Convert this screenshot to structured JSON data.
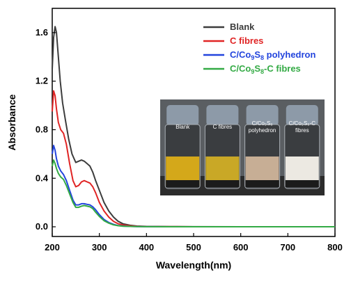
{
  "chart_data": {
    "type": "line",
    "xlabel": "Wavelength(nm)",
    "ylabel": "Absorbance",
    "xlim": [
      200,
      800
    ],
    "ylim": [
      -0.08,
      1.8
    ],
    "x_ticks": [
      "200",
      "300",
      "400",
      "500",
      "600",
      "700",
      "800"
    ],
    "y_ticks": [
      "0.0",
      "0.4",
      "0.8",
      "1.2",
      "1.6"
    ],
    "grid": false,
    "legend_position": "top-right",
    "series": [
      {
        "name": "Blank",
        "color": "#3c3c3c",
        "x": [
          200,
          203,
          206,
          209,
          213,
          217,
          222,
          228,
          235,
          242,
          250,
          256,
          262,
          268,
          274,
          280,
          286,
          292,
          300,
          310,
          320,
          330,
          340,
          350,
          365,
          380,
          400,
          450,
          500,
          600,
          700,
          800
        ],
        "y": [
          1.3,
          1.56,
          1.65,
          1.6,
          1.4,
          1.2,
          1.02,
          0.88,
          0.72,
          0.6,
          0.53,
          0.54,
          0.55,
          0.54,
          0.52,
          0.5,
          0.45,
          0.38,
          0.3,
          0.2,
          0.13,
          0.08,
          0.045,
          0.025,
          0.012,
          0.006,
          0.003,
          0.002,
          0.001,
          0.0,
          0.0,
          0.0
        ]
      },
      {
        "name": "C fibres",
        "color": "#e02424",
        "x": [
          200,
          203,
          206,
          209,
          213,
          218,
          224,
          230,
          237,
          244,
          250,
          256,
          262,
          268,
          274,
          280,
          286,
          292,
          300,
          310,
          320,
          330,
          340,
          350,
          365,
          380,
          400,
          450,
          500,
          600,
          700,
          800
        ],
        "y": [
          0.95,
          1.12,
          1.08,
          0.97,
          0.86,
          0.8,
          0.77,
          0.68,
          0.52,
          0.38,
          0.33,
          0.34,
          0.37,
          0.38,
          0.37,
          0.36,
          0.33,
          0.28,
          0.2,
          0.13,
          0.08,
          0.045,
          0.025,
          0.015,
          0.008,
          0.004,
          0.002,
          0.001,
          0.0,
          0.0,
          0.0,
          0.0
        ]
      },
      {
        "name": "C/Co9S8 polyhedron",
        "name_parts": [
          "C/Co",
          "9",
          "S",
          "8",
          " polyhedron"
        ],
        "color": "#2244dd",
        "x": [
          200,
          203,
          206,
          209,
          213,
          218,
          224,
          230,
          237,
          244,
          250,
          256,
          262,
          268,
          274,
          280,
          286,
          292,
          300,
          310,
          320,
          330,
          340,
          350,
          365,
          380,
          400,
          450,
          500,
          600,
          700,
          800
        ],
        "y": [
          0.6,
          0.67,
          0.63,
          0.56,
          0.5,
          0.46,
          0.43,
          0.38,
          0.3,
          0.22,
          0.18,
          0.18,
          0.19,
          0.19,
          0.185,
          0.18,
          0.165,
          0.14,
          0.1,
          0.06,
          0.035,
          0.02,
          0.01,
          0.006,
          0.003,
          0.002,
          0.001,
          0.0,
          0.0,
          0.0,
          0.0,
          0.0
        ]
      },
      {
        "name": "C/Co9S8-C fibres",
        "name_parts": [
          "C/Co",
          "9",
          "S",
          "8",
          "-C fibres"
        ],
        "color": "#33aa44",
        "x": [
          200,
          203,
          206,
          209,
          213,
          218,
          224,
          230,
          237,
          244,
          250,
          256,
          262,
          268,
          274,
          280,
          286,
          292,
          300,
          310,
          320,
          330,
          340,
          350,
          365,
          380,
          400,
          450,
          500,
          600,
          700,
          800
        ],
        "y": [
          0.5,
          0.55,
          0.52,
          0.48,
          0.44,
          0.41,
          0.39,
          0.34,
          0.27,
          0.2,
          0.16,
          0.16,
          0.17,
          0.175,
          0.17,
          0.165,
          0.15,
          0.12,
          0.085,
          0.05,
          0.03,
          0.016,
          0.009,
          0.005,
          0.003,
          0.002,
          0.001,
          0.0,
          0.0,
          0.0,
          0.0,
          0.0
        ]
      }
    ],
    "inset_photo": {
      "vials": [
        {
          "label_lines": [
            "Blank"
          ],
          "liquid_color": "#d4a81a",
          "cap_color": "#8d9aa8"
        },
        {
          "label_lines": [
            "C fibres"
          ],
          "liquid_color": "#c9a826",
          "cap_color": "#8d9aa8"
        },
        {
          "label_lines": [
            "C/Co₉S₈",
            "polyhedron"
          ],
          "liquid_color": "#c7ae95",
          "cap_color": "#8d9aa8"
        },
        {
          "label_lines": [
            "C/Co₉S₈-C",
            "fibres"
          ],
          "liquid_color": "#ece9e2",
          "cap_color": "#8d9aa8"
        }
      ]
    }
  }
}
